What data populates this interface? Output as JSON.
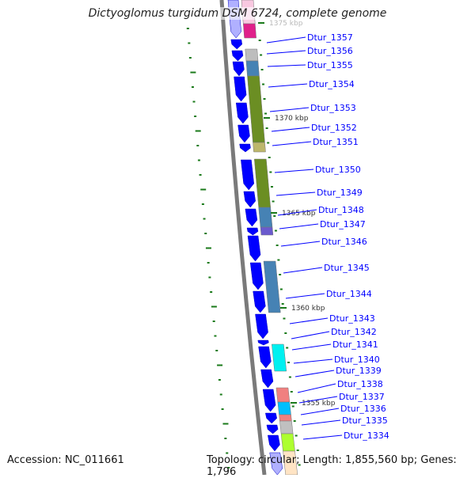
{
  "title": "Dictyoglomus turgidum DSM 6724, complete genome",
  "accession": "Accession: NC_011661",
  "summary": "Topology: circular; Length: 1,855,560 bp; Genes: 1,796",
  "scale_labels": [
    "1375 kbp",
    "1370 kbp",
    "1365 kbp",
    "1360 kbp",
    "1355 kbp"
  ],
  "genes": [
    "Dtur_1357",
    "Dtur_1356",
    "Dtur_1355",
    "Dtur_1354",
    "Dtur_1353",
    "Dtur_1352",
    "Dtur_1351",
    "Dtur_1350",
    "Dtur_1349",
    "Dtur_1348",
    "Dtur_1347",
    "Dtur_1346",
    "Dtur_1345",
    "Dtur_1344",
    "Dtur_1343",
    "Dtur_1342",
    "Dtur_1341",
    "Dtur_1340",
    "Dtur_1339",
    "Dtur_1338",
    "Dtur_1337",
    "Dtur_1336",
    "Dtur_1335",
    "Dtur_1334"
  ],
  "colors": {
    "cds": "#0000ff",
    "backbone": "#808080",
    "label": "#0000ff",
    "tick": "#1a7a1a"
  }
}
